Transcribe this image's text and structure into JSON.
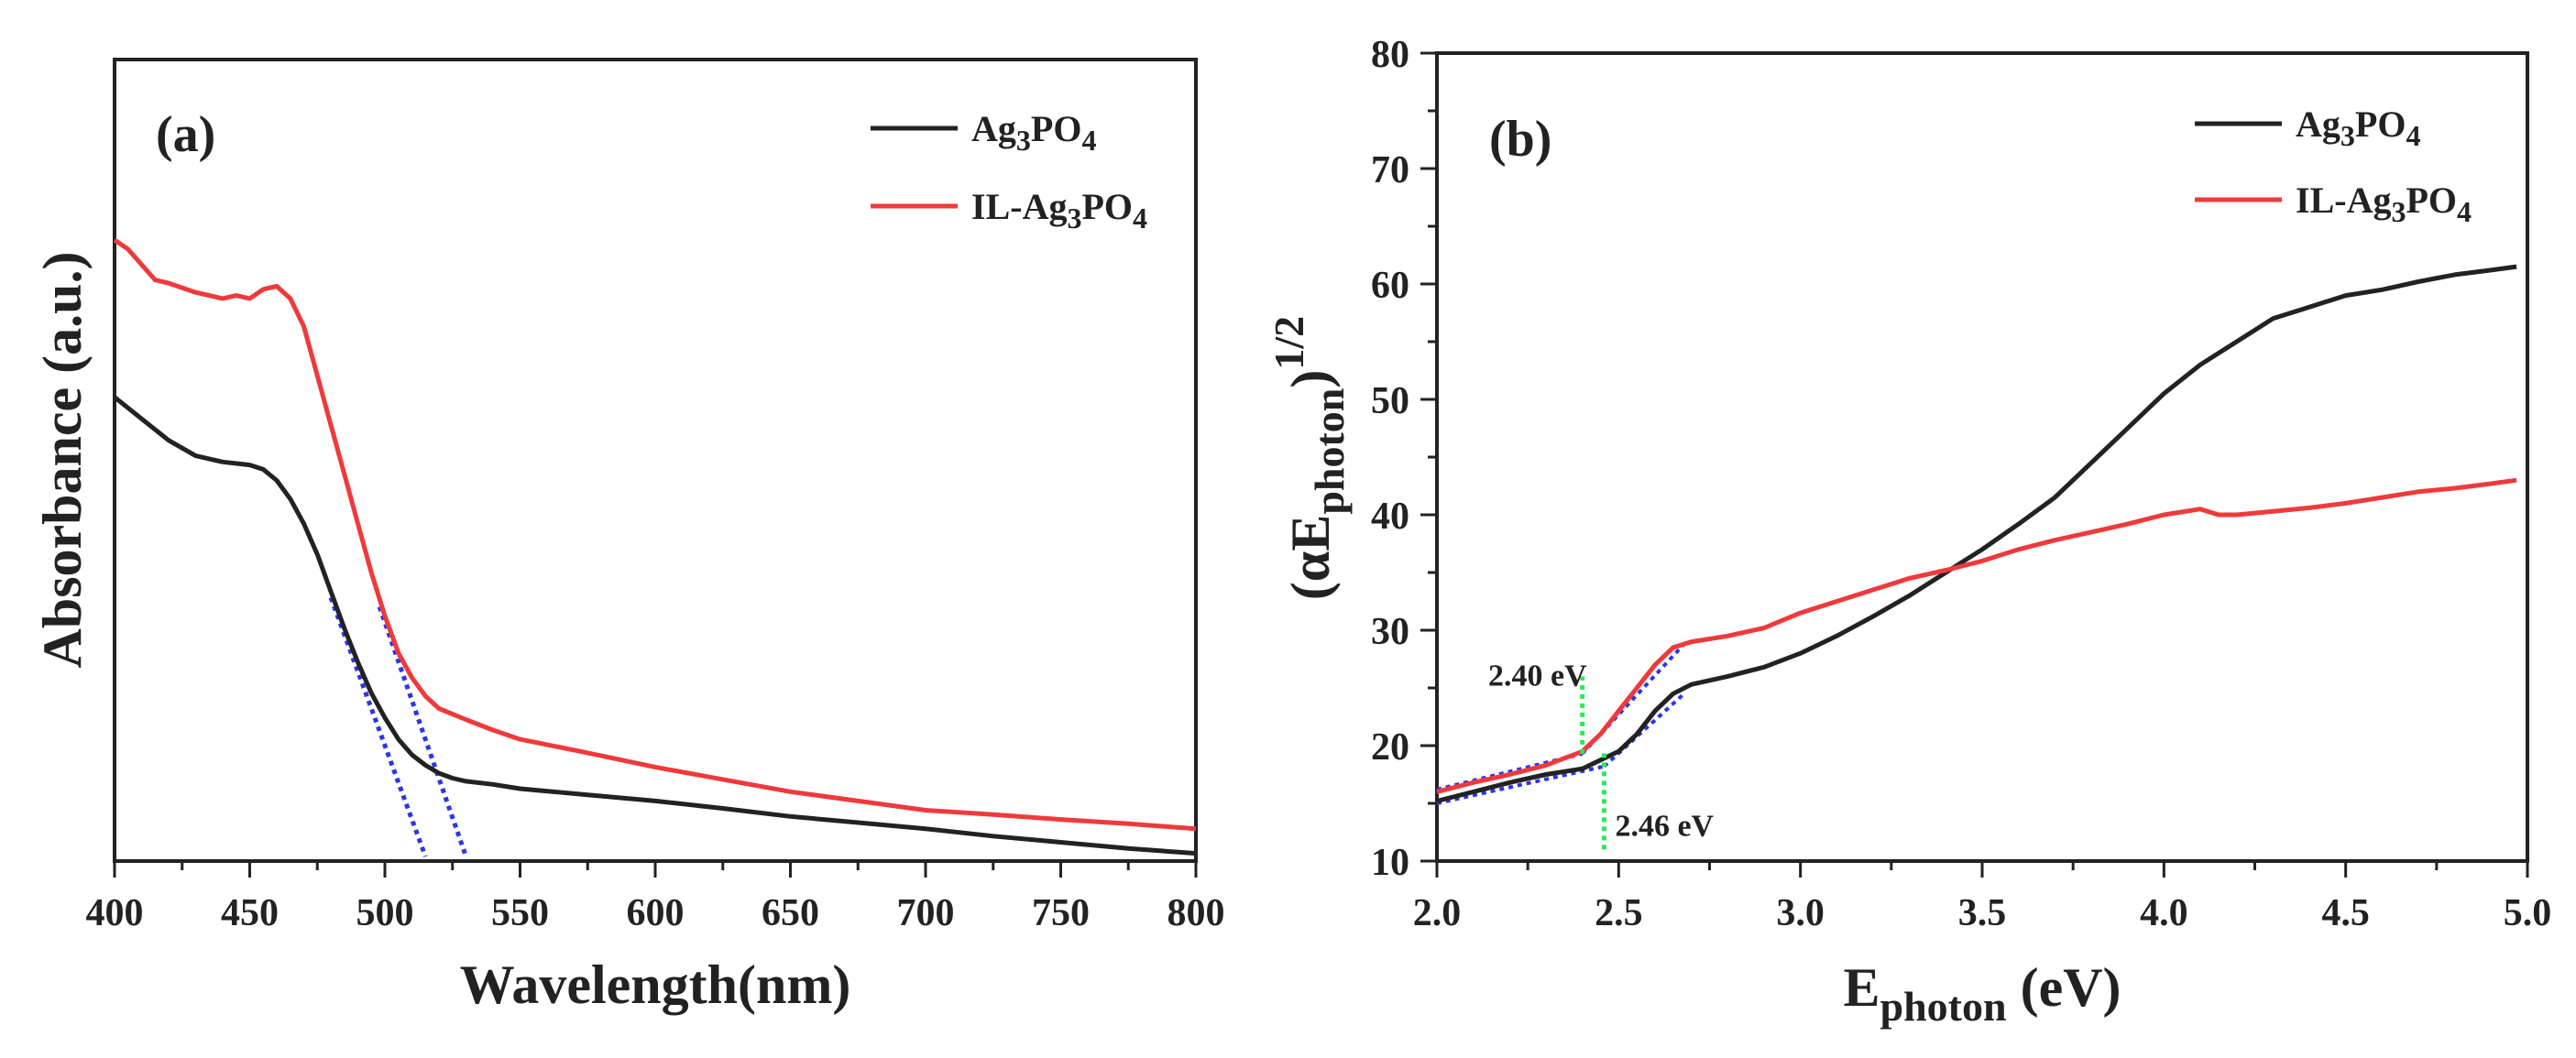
{
  "chart_data": [
    {
      "id": "a",
      "type": "line",
      "panel_label": "(a)",
      "title": "",
      "xlabel": "Wavelength(nm)",
      "ylabel": "Absorbance (a.u.)",
      "xlim": [
        400,
        800
      ],
      "ylim": [
        0,
        1.0
      ],
      "xticks": [
        400,
        450,
        500,
        550,
        600,
        650,
        700,
        750,
        800
      ],
      "yticks": [],
      "legend_position": "top-right",
      "series": [
        {
          "name": "Ag3PO4",
          "name_parts": {
            "a": "Ag",
            "s1": "3",
            "b": "PO",
            "s2": "4"
          },
          "color": "#222222",
          "x": [
            400,
            410,
            420,
            430,
            440,
            450,
            455,
            460,
            465,
            470,
            475,
            480,
            485,
            490,
            495,
            500,
            505,
            510,
            515,
            520,
            525,
            530,
            540,
            550,
            575,
            600,
            625,
            650,
            675,
            700,
            725,
            750,
            775,
            800
          ],
          "y": [
            0.745,
            0.71,
            0.675,
            0.65,
            0.64,
            0.635,
            0.628,
            0.61,
            0.58,
            0.54,
            0.49,
            0.43,
            0.37,
            0.315,
            0.265,
            0.225,
            0.19,
            0.165,
            0.148,
            0.135,
            0.127,
            0.122,
            0.117,
            0.11,
            0.1,
            0.09,
            0.078,
            0.065,
            0.055,
            0.045,
            0.033,
            0.023,
            0.013,
            0.005
          ]
        },
        {
          "name": "IL-Ag3PO4",
          "name_parts": {
            "a": "IL-Ag",
            "s1": "3",
            "b": "PO",
            "s2": "4"
          },
          "color": "#f0393b",
          "x": [
            400,
            405,
            410,
            415,
            420,
            430,
            440,
            445,
            450,
            455,
            460,
            465,
            470,
            475,
            480,
            485,
            490,
            495,
            500,
            505,
            510,
            515,
            520,
            530,
            540,
            550,
            575,
            600,
            625,
            650,
            675,
            700,
            725,
            750,
            775,
            800
          ],
          "y": [
            1.0,
            0.985,
            0.96,
            0.935,
            0.93,
            0.915,
            0.905,
            0.91,
            0.905,
            0.92,
            0.925,
            0.905,
            0.86,
            0.78,
            0.7,
            0.62,
            0.54,
            0.46,
            0.39,
            0.33,
            0.29,
            0.26,
            0.24,
            0.222,
            0.205,
            0.19,
            0.168,
            0.145,
            0.125,
            0.105,
            0.09,
            0.075,
            0.068,
            0.06,
            0.053,
            0.045
          ]
        }
      ],
      "fit_lines": [
        {
          "color": "#2b35e8",
          "x": [
            480,
            515
          ],
          "y": [
            0.42,
            0.0
          ]
        },
        {
          "color": "#2b35e8",
          "x": [
            498,
            530
          ],
          "y": [
            0.405,
            0.0
          ]
        }
      ]
    },
    {
      "id": "b",
      "type": "line",
      "panel_label": "(b)",
      "title": "",
      "xlabel_parts": {
        "main": "E",
        "sub": "photon",
        "tail": " (eV)"
      },
      "ylabel_parts": {
        "open": "(αE",
        "sub": "photon",
        "close": ")",
        "sup": "1/2"
      },
      "xlim": [
        2.0,
        5.0
      ],
      "ylim": [
        10,
        80
      ],
      "xticks": [
        "2.0",
        "2.5",
        "3.0",
        "3.5",
        "4.0",
        "4.5",
        "5.0"
      ],
      "yticks": [
        "10",
        "20",
        "30",
        "40",
        "50",
        "60",
        "70",
        "80"
      ],
      "legend_position": "top-right",
      "series": [
        {
          "name": "Ag3PO4",
          "name_parts": {
            "a": "Ag",
            "s1": "3",
            "b": "PO",
            "s2": "4"
          },
          "color": "#222222",
          "x": [
            2.0,
            2.1,
            2.2,
            2.3,
            2.4,
            2.5,
            2.55,
            2.6,
            2.65,
            2.7,
            2.8,
            2.9,
            3.0,
            3.1,
            3.2,
            3.3,
            3.4,
            3.5,
            3.6,
            3.7,
            3.8,
            3.9,
            4.0,
            4.1,
            4.2,
            4.3,
            4.4,
            4.5,
            4.6,
            4.7,
            4.8,
            4.9,
            4.97
          ],
          "y": [
            15.2,
            16.0,
            16.8,
            17.5,
            18.0,
            19.5,
            21.0,
            23.0,
            24.5,
            25.3,
            26.0,
            26.8,
            28.0,
            29.5,
            31.2,
            33.0,
            35.0,
            37.0,
            39.2,
            41.5,
            44.5,
            47.5,
            50.5,
            53.0,
            55.0,
            57.0,
            58.0,
            59.0,
            59.5,
            60.2,
            60.8,
            61.2,
            61.5
          ]
        },
        {
          "name": "IL-Ag3PO4",
          "name_parts": {
            "a": "IL-Ag",
            "s1": "3",
            "b": "PO",
            "s2": "4"
          },
          "color": "#f0393b",
          "x": [
            2.0,
            2.1,
            2.2,
            2.3,
            2.4,
            2.45,
            2.5,
            2.55,
            2.6,
            2.65,
            2.7,
            2.8,
            2.9,
            3.0,
            3.1,
            3.2,
            3.3,
            3.4,
            3.5,
            3.6,
            3.7,
            3.8,
            3.9,
            4.0,
            4.1,
            4.15,
            4.2,
            4.3,
            4.4,
            4.5,
            4.6,
            4.7,
            4.8,
            4.9,
            4.97
          ],
          "y": [
            16.0,
            16.8,
            17.5,
            18.3,
            19.5,
            21.0,
            23.0,
            25.0,
            27.0,
            28.5,
            29.0,
            29.5,
            30.2,
            31.5,
            32.5,
            33.5,
            34.5,
            35.2,
            36.0,
            37.0,
            37.8,
            38.5,
            39.2,
            40.0,
            40.5,
            40.0,
            40.0,
            40.3,
            40.6,
            41.0,
            41.5,
            42.0,
            42.3,
            42.7,
            43.0
          ]
        }
      ],
      "fit_lines": [
        {
          "color": "#2b35e8",
          "x": [
            2.0,
            2.46
          ],
          "y": [
            15.0,
            18.2
          ]
        },
        {
          "color": "#2b35e8",
          "x": [
            2.46,
            2.68
          ],
          "y": [
            18.2,
            24.5
          ]
        },
        {
          "color": "#2b35e8",
          "x": [
            2.0,
            2.4
          ],
          "y": [
            16.2,
            19.3
          ]
        },
        {
          "color": "#2b35e8",
          "x": [
            2.4,
            2.68
          ],
          "y": [
            19.3,
            28.8
          ]
        }
      ],
      "markers": [
        {
          "label": "2.40 eV",
          "x": 2.4,
          "y": [
            19.3,
            26.0
          ],
          "color": "#2ee85a"
        },
        {
          "label": "2.46 eV",
          "x": 2.46,
          "y": [
            11.0,
            19.5
          ],
          "color": "#2ee85a"
        }
      ]
    }
  ]
}
